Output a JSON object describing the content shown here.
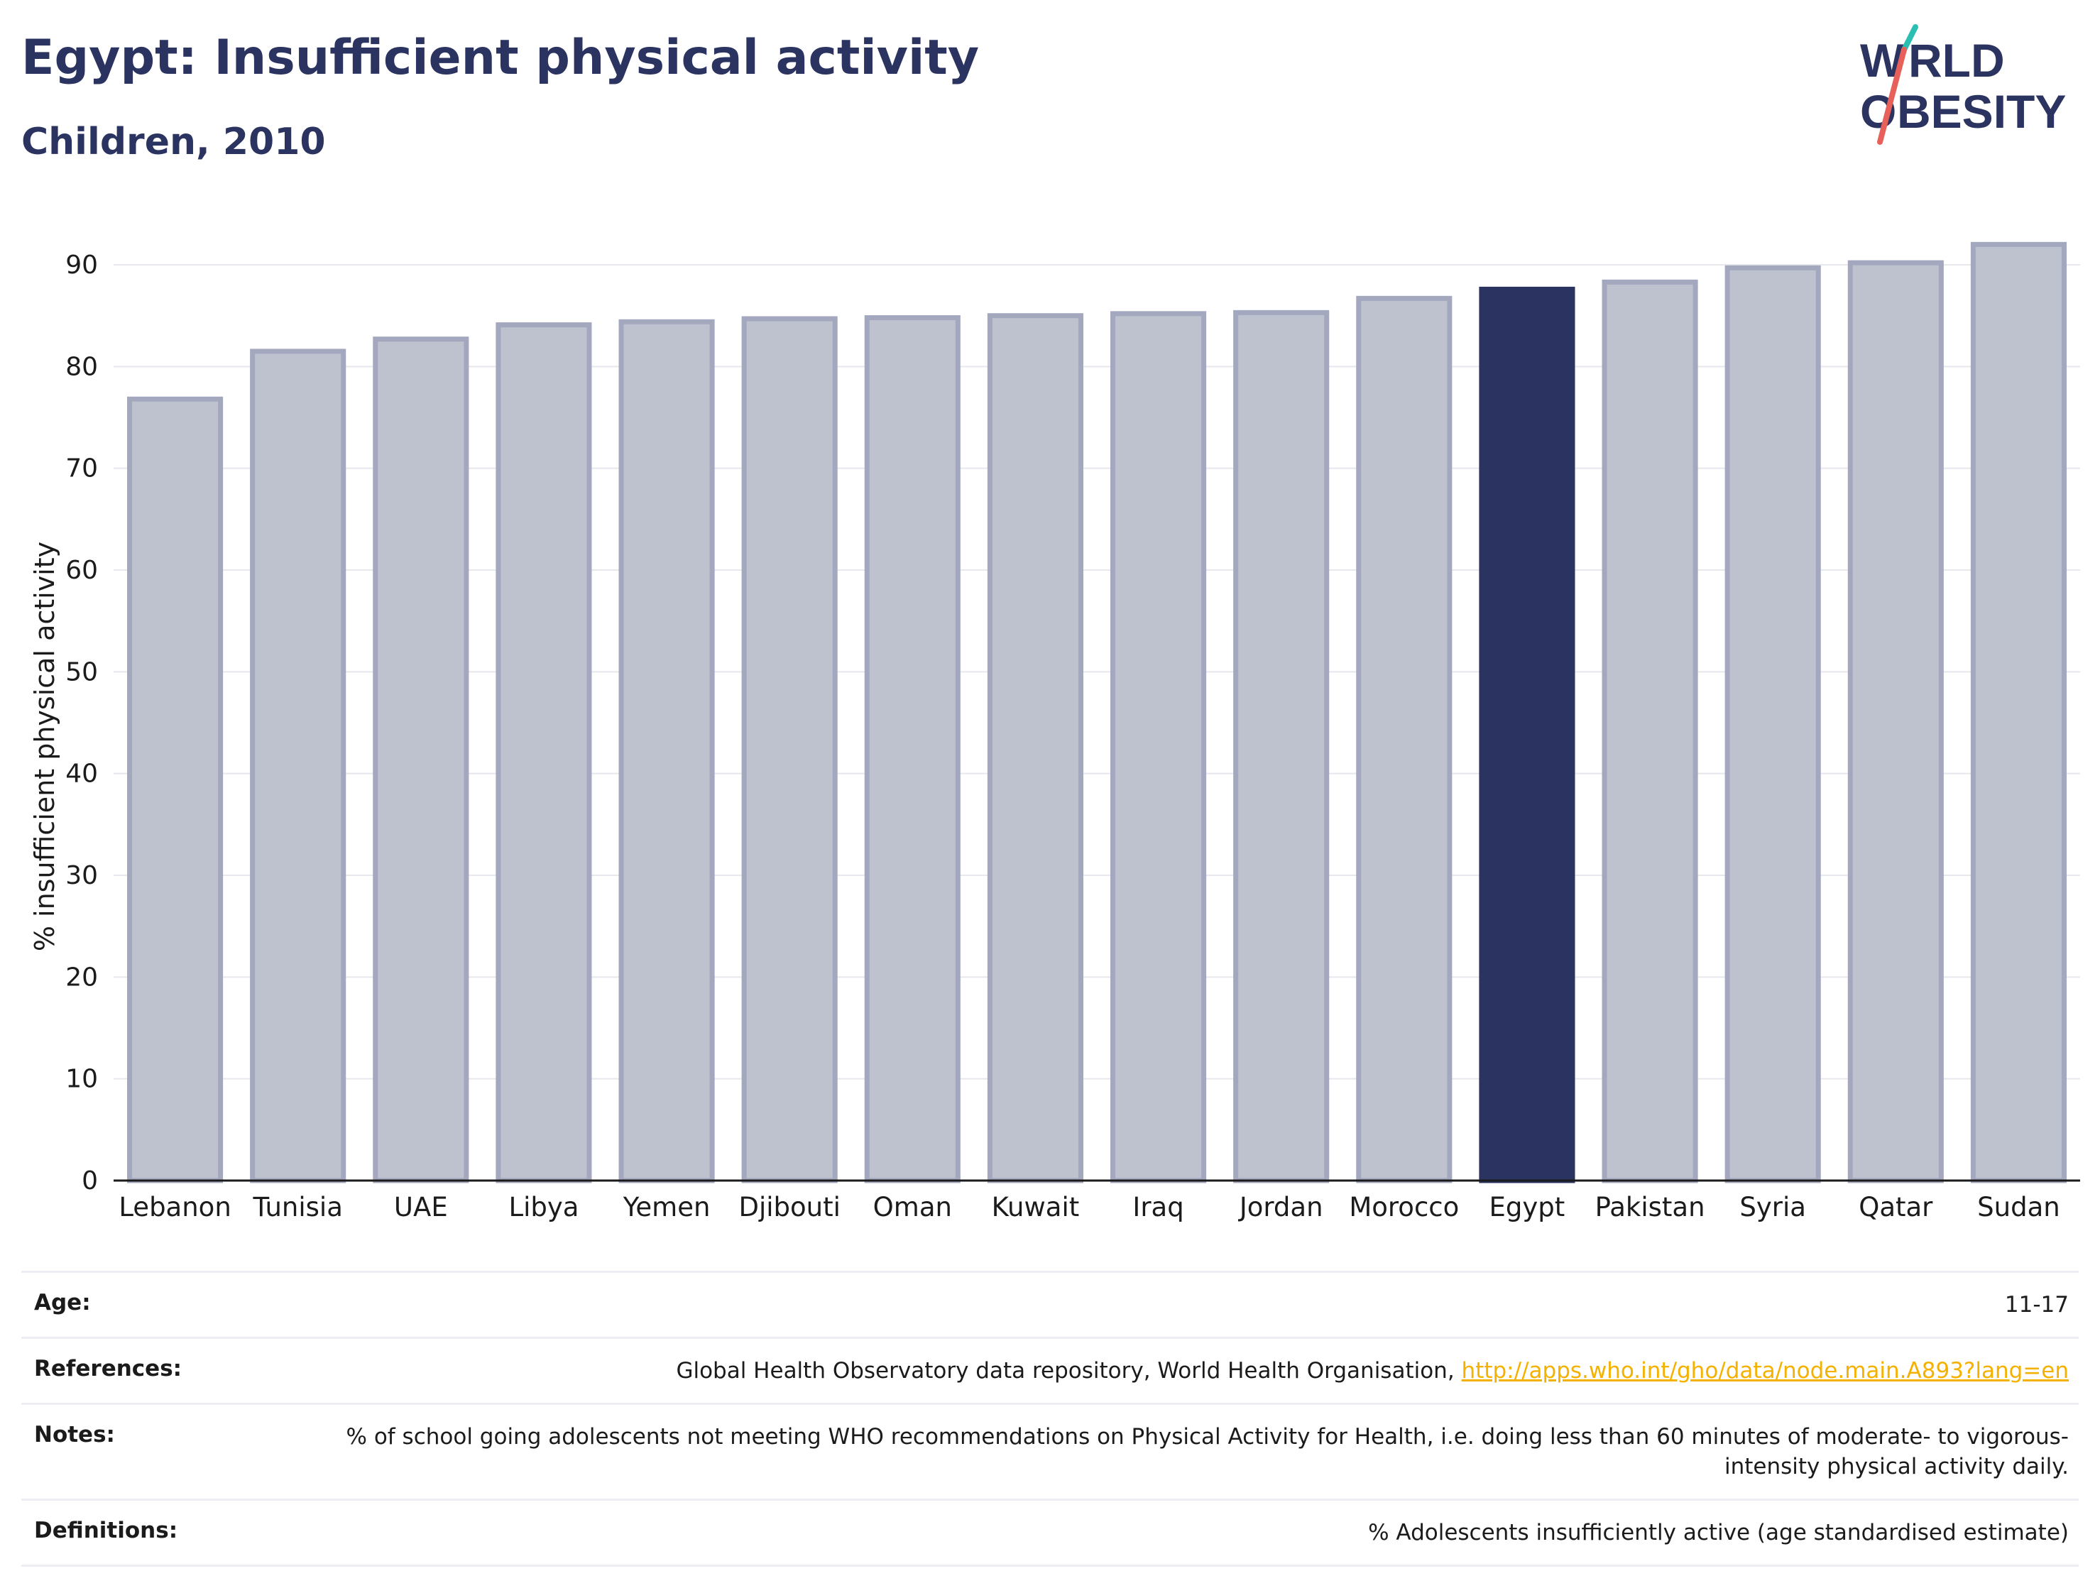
{
  "header": {
    "title": "Egypt: Insufficient physical activity",
    "subtitle": "Children, 2010"
  },
  "logo": {
    "line1": "WORLD",
    "line2": "OBESITY",
    "accent_teal": "#2bbfb3",
    "accent_red": "#e8605a"
  },
  "chart_data": {
    "type": "bar",
    "title": "Egypt: Insufficient physical activity",
    "subtitle": "Children, 2010",
    "xlabel": "",
    "ylabel": "% insufficient physical activity",
    "ylim": [
      0,
      90
    ],
    "yticks": [
      0,
      10,
      20,
      30,
      40,
      50,
      60,
      70,
      80,
      90
    ],
    "grid": true,
    "categories": [
      "Lebanon",
      "Tunisia",
      "UAE",
      "Libya",
      "Yemen",
      "Djibouti",
      "Oman",
      "Kuwait",
      "Iraq",
      "Jordan",
      "Morocco",
      "Egypt",
      "Pakistan",
      "Syria",
      "Qatar",
      "Sudan"
    ],
    "values": [
      76.8,
      81.5,
      82.7,
      84.1,
      84.4,
      84.7,
      84.8,
      85.0,
      85.2,
      85.3,
      86.7,
      87.6,
      88.3,
      89.7,
      90.2,
      92.0
    ],
    "highlight": "Egypt",
    "colors": {
      "bar": "#bec1ce",
      "bar_edge": "#a3a8bf",
      "highlight": "#2b3460"
    }
  },
  "meta": {
    "rows": [
      {
        "label": "Age:",
        "value": "11-17"
      },
      {
        "label": "References:",
        "value": "Global Health Observatory data repository, World Health Organisation, ",
        "link": "http://apps.who.int/gho/data/node.main.A893?lang=en"
      },
      {
        "label": "Notes:",
        "value": "% of school going adolescents not meeting WHO recommendations on Physical Activity for Health, i.e. doing less than 60 minutes of moderate- to vigorous-intensity physical activity daily."
      },
      {
        "label": "Definitions:",
        "value": "% Adolescents insufficiently active (age standardised estimate)"
      }
    ],
    "link_color": "#f5b100"
  }
}
